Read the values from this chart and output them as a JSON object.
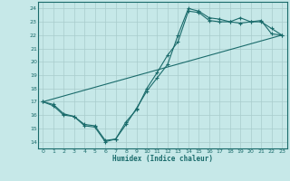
{
  "xlabel": "Humidex (Indice chaleur)",
  "bg_color": "#c6e8e8",
  "line_color": "#1a6b6b",
  "grid_color": "#a8cccc",
  "xlim": [
    -0.5,
    23.5
  ],
  "ylim": [
    13.5,
    24.5
  ],
  "xticks": [
    0,
    1,
    2,
    3,
    4,
    5,
    6,
    7,
    8,
    9,
    10,
    11,
    12,
    13,
    14,
    15,
    16,
    17,
    18,
    19,
    20,
    21,
    22,
    23
  ],
  "yticks": [
    14,
    15,
    16,
    17,
    18,
    19,
    20,
    21,
    22,
    23,
    24
  ],
  "line1_x": [
    0,
    1,
    2,
    3,
    4,
    5,
    6,
    7,
    8,
    9,
    10,
    11,
    12,
    13,
    14,
    15,
    16,
    17,
    18,
    19,
    20,
    21,
    22,
    23
  ],
  "line1_y": [
    17.0,
    16.8,
    16.1,
    15.9,
    15.3,
    15.2,
    14.1,
    14.2,
    15.3,
    16.5,
    17.8,
    18.8,
    19.8,
    22.0,
    24.0,
    23.8,
    23.3,
    23.2,
    23.0,
    22.9,
    23.0,
    23.1,
    22.1,
    22.0
  ],
  "line2_x": [
    0,
    1,
    2,
    3,
    4,
    5,
    6,
    7,
    8,
    9,
    10,
    11,
    12,
    13,
    14,
    15,
    16,
    17,
    18,
    19,
    20,
    21,
    22,
    23
  ],
  "line2_y": [
    17.0,
    16.7,
    16.0,
    15.9,
    15.2,
    15.1,
    14.0,
    14.2,
    15.5,
    16.4,
    18.0,
    19.2,
    20.5,
    21.5,
    23.8,
    23.7,
    23.1,
    23.0,
    23.0,
    23.3,
    23.0,
    23.0,
    22.5,
    22.0
  ],
  "line3_x": [
    0,
    23
  ],
  "line3_y": [
    17.0,
    22.0
  ]
}
